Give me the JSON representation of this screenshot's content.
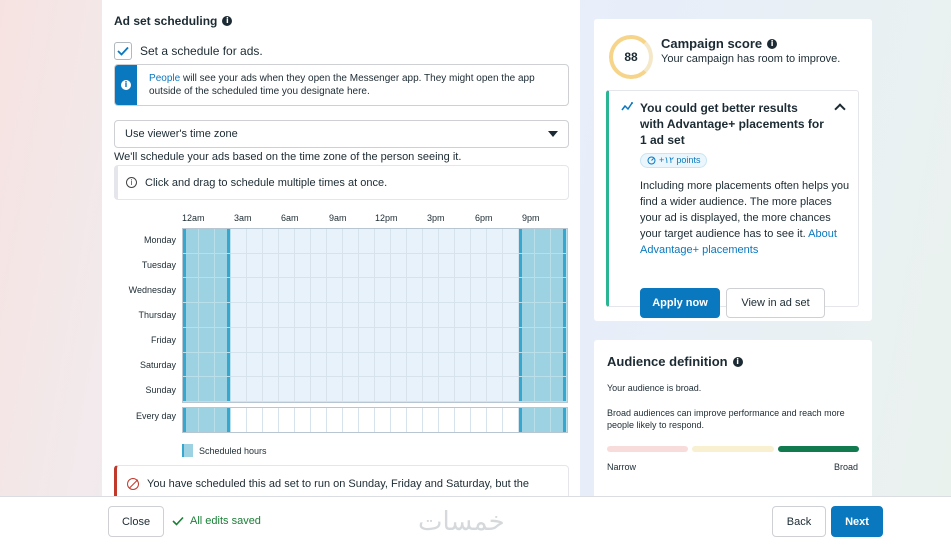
{
  "scheduling": {
    "title": "Ad set scheduling",
    "checkbox_label": "Set a schedule for ads.",
    "info_link": "People",
    "info_text": " will see your ads when they open the Messenger app. They might open the app outside of the scheduled time you designate here.",
    "timezone_select": "Use viewer's time zone",
    "timezone_note": "We'll schedule your ads based on the time zone of the person seeing it.",
    "hint": "Click and drag to schedule multiple times at once.",
    "time_labels": [
      "12am",
      "3am",
      "6am",
      "9am",
      "12pm",
      "3pm",
      "6pm",
      "9pm"
    ],
    "days": [
      "Monday",
      "Tuesday",
      "Wednesday",
      "Thursday",
      "Friday",
      "Saturday",
      "Sunday"
    ],
    "every_day": "Every day",
    "scheduled_hours": {
      "start_hours": [
        0,
        1,
        2
      ],
      "end_hours": [
        21,
        22,
        23
      ]
    },
    "legend": "Scheduled hours",
    "warning": "You have scheduled this ad set to run on Sunday, Friday and Saturday, but the"
  },
  "campaign_score": {
    "score": "88",
    "title": "Campaign score",
    "subtitle": "Your campaign has room to improve.",
    "rec_title": "You could get better results with Advantage+ placements for 1 ad set",
    "points": "+۱۲ points",
    "body": "Including more placements often helps you find a wider audience. The more places your ad is displayed, the more chances your target audience has to see it. ",
    "body_link": "About Advantage+ placements",
    "apply_button": "Apply now",
    "view_button": "View in ad set"
  },
  "audience": {
    "title": "Audience definition",
    "status": "Your audience is broad.",
    "description": "Broad audiences can improve performance and reach more people likely to respond.",
    "narrow_label": "Narrow",
    "broad_label": "Broad",
    "meter_level": "broad",
    "meter_colors": [
      "#f8dcdc",
      "#f8f0d0",
      "#117a4f"
    ]
  },
  "footer": {
    "close_button": "Close",
    "saved_text": "All edits saved",
    "watermark": "خمسات",
    "back_button": "Back",
    "next_button": "Next"
  },
  "colors": {
    "accent": "#0a78be",
    "scheduled": "#9dd2e3",
    "success": "#1a7f37",
    "warning": "#c0392b"
  }
}
